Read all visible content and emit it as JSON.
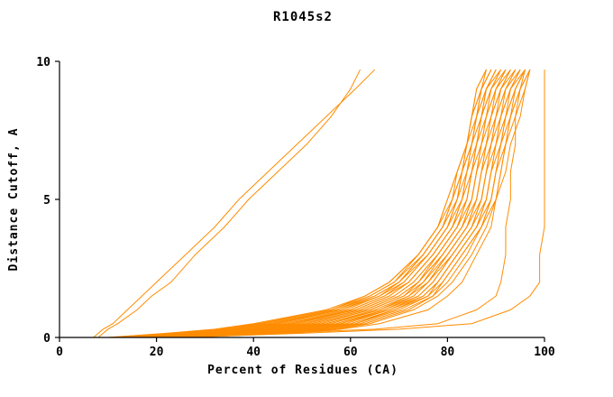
{
  "chart_data": {
    "type": "line",
    "title": "R1045s2",
    "xlabel": "Percent of Residues (CA)",
    "ylabel": "Distance Cutoff, A",
    "xlim": [
      0,
      100
    ],
    "ylim": [
      0,
      10
    ],
    "x_ticks": [
      0,
      20,
      40,
      60,
      80,
      100
    ],
    "y_ticks": [
      0,
      5,
      10
    ],
    "grid": false,
    "legend": "none",
    "line_color": "#FF8C00",
    "axis_color": "#000000",
    "y_levels": [
      0,
      0.15,
      0.3,
      0.5,
      1,
      1.5,
      2,
      3,
      4,
      5,
      6,
      7,
      8,
      9,
      9.7
    ],
    "series": [
      [
        10,
        22,
        32,
        40,
        55,
        63,
        68,
        74,
        78,
        80,
        82,
        84,
        85,
        86,
        88
      ],
      [
        10,
        23,
        33,
        41,
        56,
        63,
        68,
        74,
        78,
        80,
        82,
        84,
        85,
        86,
        88
      ],
      [
        11,
        24,
        34,
        42,
        56,
        64,
        69,
        74,
        78,
        81,
        82,
        84,
        85,
        87,
        88
      ],
      [
        11,
        25,
        35,
        43,
        57,
        64,
        69,
        75,
        79,
        81,
        83,
        84,
        85,
        87,
        89
      ],
      [
        12,
        26,
        35,
        44,
        57,
        65,
        70,
        75,
        79,
        81,
        83,
        84,
        86,
        87,
        89
      ],
      [
        12,
        26,
        36,
        44,
        58,
        65,
        70,
        75,
        79,
        82,
        83,
        85,
        86,
        87,
        89
      ],
      [
        13,
        27,
        37,
        45,
        58,
        66,
        70,
        76,
        80,
        82,
        83,
        85,
        86,
        88,
        90
      ],
      [
        13,
        28,
        38,
        46,
        59,
        66,
        71,
        76,
        80,
        82,
        84,
        85,
        86,
        88,
        90
      ],
      [
        14,
        29,
        39,
        47,
        60,
        67,
        71,
        76,
        80,
        83,
        84,
        85,
        87,
        88,
        90
      ],
      [
        14,
        30,
        40,
        48,
        60,
        67,
        72,
        77,
        81,
        83,
        84,
        86,
        87,
        88,
        91
      ],
      [
        15,
        30,
        40,
        48,
        61,
        68,
        72,
        77,
        81,
        83,
        85,
        86,
        87,
        89,
        91
      ],
      [
        15,
        31,
        41,
        49,
        61,
        68,
        72,
        77,
        81,
        84,
        85,
        86,
        87,
        89,
        91
      ],
      [
        16,
        32,
        42,
        50,
        62,
        69,
        73,
        78,
        82,
        84,
        85,
        86,
        88,
        89,
        92
      ],
      [
        16,
        33,
        43,
        51,
        62,
        69,
        73,
        78,
        82,
        84,
        85,
        87,
        88,
        90,
        92
      ],
      [
        17,
        33,
        44,
        52,
        63,
        70,
        74,
        78,
        82,
        85,
        86,
        87,
        88,
        90,
        92
      ],
      [
        17,
        34,
        44,
        52,
        63,
        70,
        74,
        79,
        83,
        85,
        86,
        87,
        89,
        90,
        93
      ],
      [
        18,
        35,
        45,
        53,
        64,
        71,
        74,
        79,
        83,
        85,
        86,
        88,
        89,
        91,
        93
      ],
      [
        18,
        36,
        46,
        54,
        64,
        71,
        75,
        79,
        83,
        86,
        87,
        88,
        89,
        91,
        93
      ],
      [
        19,
        36,
        47,
        55,
        65,
        72,
        75,
        80,
        84,
        86,
        87,
        88,
        90,
        91,
        94
      ],
      [
        19,
        37,
        48,
        55,
        66,
        72,
        76,
        80,
        84,
        86,
        87,
        89,
        90,
        92,
        94
      ],
      [
        20,
        38,
        48,
        56,
        66,
        73,
        76,
        80,
        84,
        87,
        88,
        89,
        90,
        92,
        94
      ],
      [
        20,
        39,
        49,
        57,
        67,
        73,
        76,
        81,
        85,
        87,
        88,
        89,
        91,
        92,
        95
      ],
      [
        21,
        39,
        50,
        58,
        67,
        74,
        77,
        81,
        85,
        87,
        88,
        90,
        91,
        93,
        95
      ],
      [
        21,
        40,
        51,
        58,
        68,
        74,
        77,
        81,
        85,
        88,
        89,
        90,
        91,
        93,
        95
      ],
      [
        22,
        41,
        52,
        59,
        68,
        75,
        78,
        82,
        86,
        88,
        89,
        90,
        92,
        93,
        96
      ],
      [
        22,
        42,
        52,
        60,
        69,
        75,
        78,
        82,
        86,
        88,
        89,
        91,
        92,
        94,
        96
      ],
      [
        23,
        42,
        53,
        61,
        69,
        76,
        78,
        82,
        86,
        89,
        90,
        91,
        92,
        94,
        96
      ],
      [
        23,
        43,
        54,
        61,
        70,
        76,
        79,
        83,
        87,
        89,
        90,
        91,
        93,
        94,
        96
      ],
      [
        24,
        44,
        55,
        62,
        71,
        77,
        79,
        83,
        87,
        89,
        90,
        92,
        93,
        95,
        97
      ],
      [
        24,
        45,
        56,
        63,
        72,
        77,
        80,
        84,
        87,
        90,
        91,
        92,
        93,
        95,
        97
      ],
      [
        25,
        46,
        57,
        64,
        73,
        78,
        81,
        85,
        88,
        90,
        91,
        92,
        94,
        96,
        97
      ],
      [
        26,
        48,
        58,
        66,
        76,
        80,
        83,
        86,
        89,
        90,
        92,
        93,
        95,
        96,
        97
      ],
      [
        7,
        8,
        9,
        11,
        14,
        17,
        20,
        26,
        32,
        37,
        43,
        49,
        55,
        61,
        65
      ],
      [
        8,
        9,
        10,
        12,
        16,
        19,
        23,
        28,
        34,
        39,
        45,
        51,
        56,
        60,
        62
      ],
      [
        25,
        50,
        70,
        85,
        93,
        97,
        99,
        99,
        100,
        100,
        100,
        100,
        100,
        100,
        100
      ],
      [
        20,
        45,
        65,
        78,
        86,
        90,
        91,
        92,
        92,
        93,
        93,
        94,
        94,
        95,
        96
      ]
    ]
  }
}
